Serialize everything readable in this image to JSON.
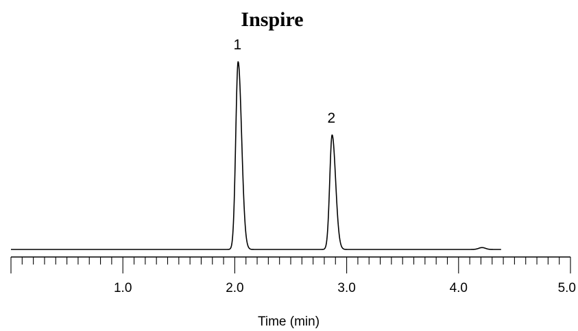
{
  "chart_data": {
    "type": "line",
    "title": "Inspire",
    "xlabel": "Time (min)",
    "ylabel": "",
    "xlim": [
      0.0,
      5.0
    ],
    "x_major_ticks": [
      1.0,
      2.0,
      3.0,
      4.0,
      5.0
    ],
    "x_tick_labels": [
      "1.0",
      "2.0",
      "3.0",
      "4.0",
      "5.0"
    ],
    "x_minor_step": 0.1,
    "grid": false,
    "legend": "none",
    "trace_end_time": 4.38,
    "peaks": [
      {
        "label": "1",
        "time": 2.03,
        "relative_height": 1.0
      },
      {
        "label": "2",
        "time": 2.87,
        "relative_height": 0.61
      }
    ],
    "minor_feature": {
      "time": 4.21,
      "relative_height": 0.01
    },
    "line_color": "#000000"
  }
}
